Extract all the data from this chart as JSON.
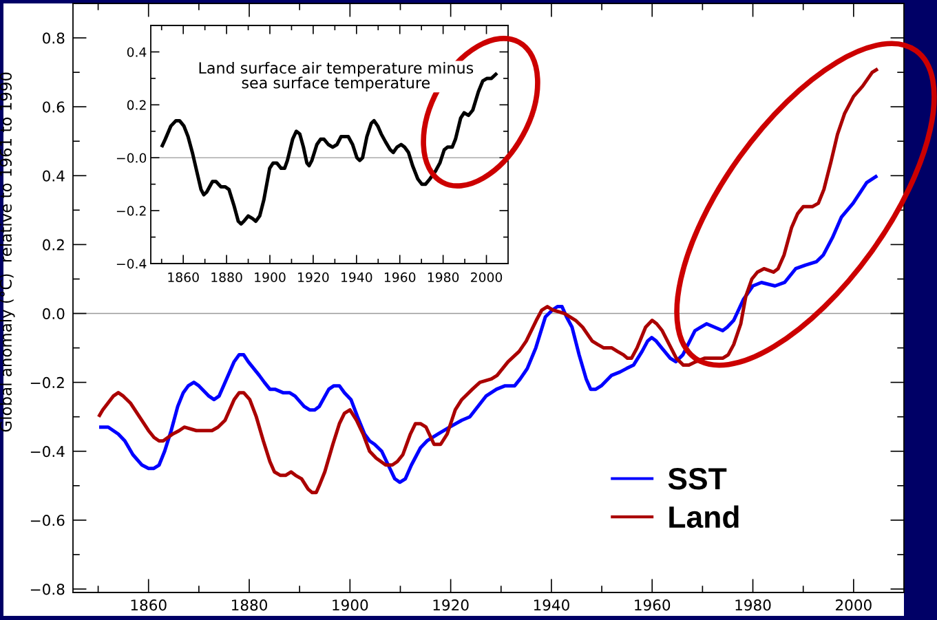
{
  "chart_data": [
    {
      "type": "line",
      "ylabel": "Global anomaly (°C)  relative to 1961 to 1990",
      "xlim": [
        1845,
        2010
      ],
      "ylim": [
        -0.81,
        0.9
      ],
      "xticks": [
        {
          "value": 1850,
          "label": null
        },
        1860,
        {
          "value": 1870,
          "label": null
        },
        1880,
        {
          "value": 1890,
          "label": null
        },
        1900,
        {
          "value": 1910,
          "label": null
        },
        1920,
        {
          "value": 1930,
          "label": null
        },
        1940,
        {
          "value": 1950,
          "label": null
        },
        1960,
        {
          "value": 1970,
          "label": null
        },
        1980,
        {
          "value": 1990,
          "label": null
        },
        2000
      ],
      "yticks": [
        0.8,
        {
          "value": 0.7,
          "label": null
        },
        0.6,
        {
          "value": 0.5,
          "label": null
        },
        0.4,
        {
          "value": 0.3,
          "label": null
        },
        0.2,
        {
          "value": 0.1,
          "label": null
        },
        {
          "value": 0,
          "label": "0.0"
        },
        {
          "value": -0.1,
          "label": null
        },
        {
          "value": -0.2,
          "label": "−0.2"
        },
        {
          "value": -0.3,
          "label": null
        },
        {
          "value": -0.4,
          "label": "−0.4"
        },
        {
          "value": -0.5,
          "label": null
        },
        {
          "value": -0.6,
          "label": "−0.6"
        },
        {
          "value": -0.7,
          "label": null
        },
        {
          "value": -0.8,
          "label": "−0.8"
        }
      ],
      "series": [
        {
          "name": "SST",
          "color": "#0000ff",
          "x": [
            1850.2,
            1852.0,
            1853.0,
            1854.0,
            1855.3,
            1856.9,
            1858.7,
            1860.0,
            1861.0,
            1862.1,
            1863.2,
            1864.5,
            1865.8,
            1866.9,
            1867.9,
            1869.0,
            1870.0,
            1872.0,
            1873.0,
            1874.0,
            1874.9,
            1877.0,
            1878.0,
            1878.9,
            1879.8,
            1882.0,
            1883.0,
            1884.1,
            1885.1,
            1886.7,
            1888.0,
            1889.1,
            1890.9,
            1892.0,
            1893.0,
            1893.9,
            1895.8,
            1896.8,
            1897.9,
            1898.9,
            1900.2,
            1901.5,
            1902.9,
            1903.9,
            1904.9,
            1906.3,
            1907.6,
            1908.9,
            1909.9,
            1911.0,
            1912.2,
            1914.0,
            1915.3,
            1917.5,
            1919.8,
            1922.2,
            1923.8,
            1927.0,
            1929.1,
            1930.8,
            1932.7,
            1933.8,
            1935.2,
            1936.9,
            1938.8,
            1940.2,
            1941.2,
            1942.1,
            1943.0,
            1944.1,
            1945.5,
            1946.9,
            1947.8,
            1948.8,
            1949.9,
            1951.9,
            1953.6,
            1954.9,
            1956.3,
            1958.0,
            1959.1,
            1959.9,
            1960.8,
            1961.9,
            1963.6,
            1964.7,
            1966.1,
            1968.5,
            1970.8,
            1974.0,
            1974.9,
            1976.2,
            1978.1,
            1980.0,
            1981.7,
            1984.4,
            1986.3,
            1988.5,
            1990.4,
            1992.6,
            1994.0,
            1995.8,
            1997.6,
            1999.9,
            2002.6,
            2004.7
          ],
          "values": [
            -0.33,
            -0.33,
            -0.34,
            -0.35,
            -0.37,
            -0.41,
            -0.44,
            -0.45,
            -0.45,
            -0.44,
            -0.4,
            -0.34,
            -0.27,
            -0.23,
            -0.21,
            -0.2,
            -0.21,
            -0.24,
            -0.25,
            -0.24,
            -0.21,
            -0.14,
            -0.12,
            -0.12,
            -0.14,
            -0.18,
            -0.2,
            -0.22,
            -0.22,
            -0.23,
            -0.23,
            -0.24,
            -0.27,
            -0.28,
            -0.28,
            -0.27,
            -0.22,
            -0.21,
            -0.21,
            -0.23,
            -0.25,
            -0.3,
            -0.35,
            -0.37,
            -0.38,
            -0.4,
            -0.44,
            -0.48,
            -0.49,
            -0.48,
            -0.44,
            -0.39,
            -0.37,
            -0.35,
            -0.33,
            -0.31,
            -0.3,
            -0.24,
            -0.22,
            -0.21,
            -0.21,
            -0.19,
            -0.16,
            -0.1,
            -0.01,
            0.01,
            0.02,
            0.02,
            -0.01,
            -0.04,
            -0.12,
            -0.19,
            -0.22,
            -0.22,
            -0.21,
            -0.18,
            -0.17,
            -0.16,
            -0.15,
            -0.11,
            -0.08,
            -0.07,
            -0.08,
            -0.1,
            -0.13,
            -0.14,
            -0.12,
            -0.05,
            -0.03,
            -0.05,
            -0.04,
            -0.02,
            0.04,
            0.08,
            0.09,
            0.08,
            0.09,
            0.13,
            0.14,
            0.15,
            0.17,
            0.22,
            0.28,
            0.32,
            0.38,
            0.4
          ]
        },
        {
          "name": "Land",
          "color": "#aa0000",
          "x": [
            1850.1,
            1850.9,
            1853.0,
            1854.0,
            1855.0,
            1856.4,
            1858.2,
            1860.0,
            1861.1,
            1862.1,
            1862.9,
            1864.8,
            1866.1,
            1867.1,
            1869.5,
            1872.6,
            1873.8,
            1875.2,
            1877.0,
            1878.0,
            1878.9,
            1880.1,
            1881.4,
            1882.8,
            1884.1,
            1885.0,
            1886.2,
            1887.2,
            1888.3,
            1889.2,
            1890.4,
            1891.7,
            1892.5,
            1893.3,
            1893.9,
            1895.0,
            1896.6,
            1897.9,
            1898.9,
            1900.0,
            1901.3,
            1902.6,
            1903.9,
            1905.2,
            1907.1,
            1908.4,
            1909.4,
            1910.5,
            1912.0,
            1913.0,
            1914.0,
            1915.1,
            1916.7,
            1918.0,
            1919.3,
            1920.9,
            1922.2,
            1924.3,
            1925.8,
            1928.1,
            1929.2,
            1931.4,
            1933.6,
            1935.0,
            1937.0,
            1938.1,
            1939.2,
            1940.3,
            1942.6,
            1944.8,
            1946.2,
            1948.1,
            1949.2,
            1950.4,
            1952.0,
            1953.1,
            1954.3,
            1955.1,
            1955.9,
            1957.0,
            1958.7,
            1960.0,
            1960.9,
            1962.0,
            1963.4,
            1964.8,
            1966.2,
            1967.3,
            1968.7,
            1970.4,
            1972.6,
            1974.0,
            1975.1,
            1976.2,
            1977.6,
            1978.6,
            1979.8,
            1980.9,
            1982.2,
            1984.1,
            1985.0,
            1986.2,
            1987.7,
            1988.9,
            1990.0,
            1991.8,
            1993.0,
            1994.1,
            1995.5,
            1996.8,
            1998.2,
            2000.0,
            2001.8,
            2003.7,
            2004.8
          ],
          "values": [
            -0.3,
            -0.28,
            -0.24,
            -0.23,
            -0.24,
            -0.26,
            -0.3,
            -0.34,
            -0.36,
            -0.37,
            -0.37,
            -0.35,
            -0.34,
            -0.33,
            -0.34,
            -0.34,
            -0.33,
            -0.31,
            -0.25,
            -0.23,
            -0.23,
            -0.25,
            -0.3,
            -0.37,
            -0.43,
            -0.46,
            -0.47,
            -0.47,
            -0.46,
            -0.47,
            -0.48,
            -0.51,
            -0.52,
            -0.52,
            -0.5,
            -0.46,
            -0.38,
            -0.32,
            -0.29,
            -0.28,
            -0.31,
            -0.35,
            -0.4,
            -0.42,
            -0.44,
            -0.44,
            -0.43,
            -0.41,
            -0.35,
            -0.32,
            -0.32,
            -0.33,
            -0.38,
            -0.38,
            -0.35,
            -0.28,
            -0.25,
            -0.22,
            -0.2,
            -0.19,
            -0.18,
            -0.14,
            -0.11,
            -0.08,
            -0.02,
            0.01,
            0.02,
            0.01,
            0,
            -0.02,
            -0.04,
            -0.08,
            -0.09,
            -0.1,
            -0.1,
            -0.11,
            -0.12,
            -0.13,
            -0.13,
            -0.1,
            -0.04,
            -0.02,
            -0.03,
            -0.05,
            -0.09,
            -0.13,
            -0.15,
            -0.15,
            -0.14,
            -0.13,
            -0.13,
            -0.13,
            -0.12,
            -0.09,
            -0.03,
            0.05,
            0.1,
            0.12,
            0.13,
            0.12,
            0.13,
            0.17,
            0.25,
            0.29,
            0.31,
            0.31,
            0.32,
            0.36,
            0.44,
            0.52,
            0.58,
            0.63,
            0.66,
            0.7,
            0.71
          ]
        }
      ],
      "ref_lines": [
        {
          "axis": "y",
          "value": 0,
          "color": "#999999"
        }
      ],
      "legend": "bottom right",
      "line_style": "solid"
    },
    {
      "type": "line",
      "annotations": [
        "Land surface air temperature minus\nsea surface temperature"
      ],
      "xlim": [
        1845,
        2010
      ],
      "ylim": [
        -0.4,
        0.5
      ],
      "xticks": [
        {
          "value": 1850,
          "label": null
        },
        1860,
        {
          "value": 1870,
          "label": null
        },
        1880,
        {
          "value": 1890,
          "label": null
        },
        1900,
        {
          "value": 1910,
          "label": null
        },
        1920,
        {
          "value": 1930,
          "label": null
        },
        1940,
        {
          "value": 1950,
          "label": null
        },
        1960,
        {
          "value": 1970,
          "label": null
        },
        1980,
        {
          "value": 1990,
          "label": null
        },
        2000
      ],
      "yticks": [
        0.4,
        {
          "value": 0.3,
          "label": null
        },
        0.2,
        {
          "value": 0.1,
          "label": null
        },
        {
          "value": 0,
          "label": "−0.0"
        },
        {
          "value": -0.1,
          "label": null
        },
        {
          "value": -0.2,
          "label": "−0.2"
        },
        {
          "value": -0.3,
          "label": null
        },
        {
          "value": -0.4,
          "label": "−0.4"
        }
      ],
      "series": [
        {
          "color": "#000000",
          "x": [
            1850.0,
            1851.7,
            1854.3,
            1856.6,
            1858.3,
            1860.3,
            1862.2,
            1864.2,
            1866.2,
            1868.2,
            1869.5,
            1870.8,
            1873.5,
            1875.1,
            1877.4,
            1879.4,
            1881.1,
            1883.4,
            1885.4,
            1886.7,
            1888.0,
            1890.0,
            1892.0,
            1893.5,
            1895.3,
            1897.2,
            1899.9,
            1901.5,
            1903.2,
            1905.2,
            1906.8,
            1908.1,
            1910.5,
            1912.2,
            1913.8,
            1915.5,
            1917.1,
            1918.1,
            1919.4,
            1921.7,
            1923.4,
            1925.0,
            1927.0,
            1929.0,
            1931.0,
            1932.9,
            1934.5,
            1936.2,
            1938.2,
            1940.2,
            1941.5,
            1942.8,
            1944.8,
            1946.8,
            1948.1,
            1949.8,
            1951.4,
            1953.4,
            1955.6,
            1957.0,
            1958.7,
            1960.6,
            1962.2,
            1964.0,
            1965.9,
            1968.3,
            1970.2,
            1971.9,
            1973.9,
            1976.5,
            1978.5,
            1980.5,
            1982.0,
            1984.2,
            1985.7,
            1988.1,
            1989.7,
            1991.7,
            1993.7,
            1996.3,
            1998.3,
            2000.3,
            2002.3,
            2004.9
          ],
          "values": [
            0.04,
            0.07,
            0.12,
            0.14,
            0.14,
            0.12,
            0.08,
            0.02,
            -0.05,
            -0.12,
            -0.14,
            -0.13,
            -0.09,
            -0.09,
            -0.11,
            -0.11,
            -0.12,
            -0.18,
            -0.24,
            -0.25,
            -0.24,
            -0.22,
            -0.23,
            -0.24,
            -0.22,
            -0.16,
            -0.04,
            -0.02,
            -0.02,
            -0.04,
            -0.04,
            -0.01,
            0.07,
            0.1,
            0.09,
            0.04,
            -0.02,
            -0.03,
            -0.01,
            0.05,
            0.07,
            0.07,
            0.05,
            0.04,
            0.05,
            0.08,
            0.08,
            0.08,
            0.05,
            0,
            -0.01,
            0,
            0.08,
            0.13,
            0.14,
            0.12,
            0.09,
            0.06,
            0.03,
            0.02,
            0.04,
            0.05,
            0.04,
            0.02,
            -0.03,
            -0.08,
            -0.1,
            -0.1,
            -0.08,
            -0.05,
            -0.02,
            0.03,
            0.04,
            0.04,
            0.07,
            0.15,
            0.17,
            0.16,
            0.18,
            0.25,
            0.29,
            0.3,
            0.3,
            0.32
          ]
        }
      ],
      "ref_lines": [
        {
          "axis": "y",
          "value": 0,
          "color": "#aaaaaa"
        }
      ],
      "line_style": "solid"
    }
  ]
}
